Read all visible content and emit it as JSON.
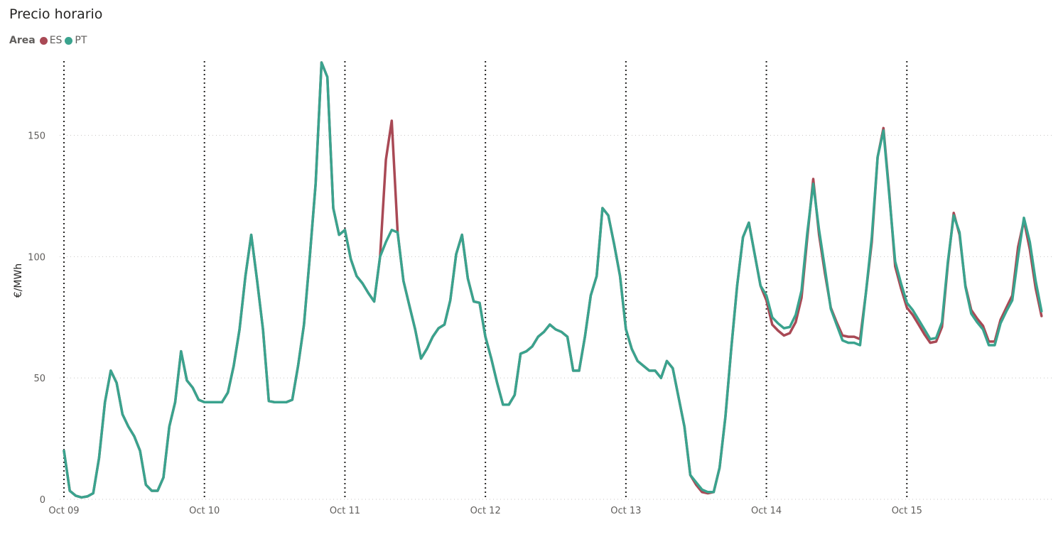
{
  "chart_data": {
    "type": "line",
    "title": "Precio horario",
    "legend_title": "Area",
    "legend_position": "top-left",
    "ylabel": "€/MWh",
    "xlabel": "",
    "ylim": [
      0,
      180
    ],
    "yticks": [
      0,
      50,
      100,
      150
    ],
    "grid": "horizontal dotted",
    "xlim": [
      0,
      168
    ],
    "x_tick_positions": [
      0,
      24,
      48,
      72,
      96,
      120,
      144
    ],
    "x_tick_labels": [
      "Oct 09",
      "Oct 10",
      "Oct 11",
      "Oct 12",
      "Oct 13",
      "Oct 14",
      "Oct 15"
    ],
    "day_separators": [
      0,
      24,
      48,
      72,
      96,
      120,
      144
    ],
    "series": [
      {
        "name": "ES",
        "color": "#A94955",
        "values": [
          20,
          3.5,
          1.5,
          0.8,
          1.2,
          2.5,
          17,
          40,
          53,
          48,
          35,
          30,
          26,
          20,
          6,
          3.5,
          3.5,
          9,
          30,
          40,
          61,
          49,
          46,
          41,
          40,
          40,
          40,
          40,
          44,
          55,
          70,
          92,
          109,
          90,
          70,
          40.5,
          40,
          40,
          40,
          41,
          55,
          72,
          100,
          130,
          180,
          174,
          120,
          109,
          111,
          99,
          92,
          89,
          85,
          81.5,
          100,
          140,
          156,
          110,
          90,
          80,
          70,
          58,
          62,
          67,
          70.5,
          72,
          82,
          101,
          109,
          91,
          81.5,
          81,
          67,
          58,
          48,
          39,
          39,
          43,
          60,
          61,
          63,
          67,
          69,
          72,
          70,
          69,
          67,
          53,
          53,
          67,
          84,
          92,
          120,
          117,
          105,
          92,
          70,
          62,
          57,
          55,
          53,
          53,
          50,
          57,
          54,
          42,
          30,
          10,
          6,
          3,
          2.5,
          3,
          13,
          34,
          62,
          88,
          108,
          114,
          101,
          88,
          82,
          72,
          69.5,
          67.5,
          68.5,
          73,
          83,
          108,
          132,
          109,
          93,
          79,
          73,
          67.5,
          67,
          67,
          66,
          85,
          106,
          141,
          153,
          126,
          96,
          87,
          79,
          76,
          72,
          68,
          64.5,
          65,
          71,
          97,
          118,
          109,
          88,
          78,
          74.5,
          71.5,
          65,
          65,
          74,
          79,
          84,
          104,
          115,
          103,
          87,
          75.5
        ]
      },
      {
        "name": "PT",
        "color": "#3AA38E",
        "values": [
          20,
          3.5,
          1.5,
          0.8,
          1.2,
          2.5,
          17,
          40,
          53,
          48,
          35,
          30,
          26,
          20,
          6,
          3.5,
          3.5,
          9,
          30,
          40,
          61,
          49,
          46,
          41,
          40,
          40,
          40,
          40,
          44,
          55,
          70,
          92,
          109,
          90,
          70,
          40.5,
          40,
          40,
          40,
          41,
          55,
          72,
          100,
          130,
          180,
          174,
          120,
          109,
          111,
          99,
          92,
          89,
          85,
          81.5,
          100,
          106,
          111,
          110,
          90,
          80,
          70,
          58,
          62,
          67,
          70.5,
          72,
          82,
          101,
          109,
          91,
          81.5,
          81,
          67,
          58,
          48,
          39,
          39,
          43,
          60,
          61,
          63,
          67,
          69,
          72,
          70,
          69,
          67,
          53,
          53,
          67,
          84,
          92,
          120,
          117,
          105,
          92,
          70,
          62,
          57,
          55,
          53,
          53,
          50,
          57,
          54,
          42,
          30,
          10,
          7,
          4,
          3,
          3,
          13,
          34,
          62,
          88,
          108,
          114,
          101,
          88,
          84,
          75,
          72.5,
          70.5,
          71,
          76,
          86,
          110,
          130,
          111,
          95,
          78.5,
          72,
          65.5,
          64.5,
          64.5,
          63.5,
          85,
          108,
          141,
          152,
          125,
          98,
          89,
          81,
          78,
          74,
          70,
          66,
          66.5,
          73,
          98,
          117,
          110,
          87.5,
          76.5,
          73,
          70,
          63.5,
          63.5,
          72.5,
          77.5,
          82,
          100,
          116,
          106,
          90,
          77.5
        ]
      }
    ]
  }
}
